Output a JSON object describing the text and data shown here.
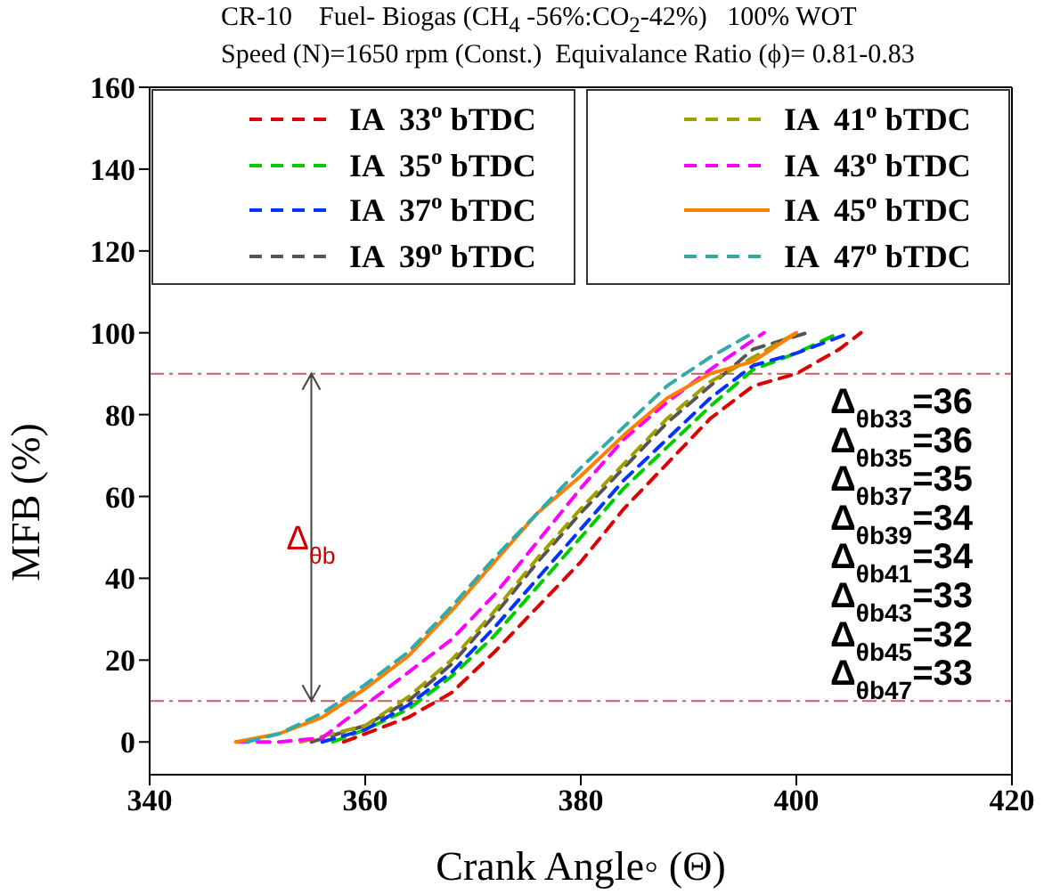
{
  "chart_data": {
    "type": "line",
    "title": "CR-10    Fuel- Biogas (CH$_{4}$ -56%:CO$_{2}$-42%)   100% WOT",
    "subtitle": "Speed (N)=1650 rpm (Const.)  Equivalance Ratio (ϕ)= 0.81-0.83",
    "xlabel": "Crank Angle◦ (Θ)",
    "ylabel": "MFB (%)",
    "series": [
      {
        "name": "IA  33$^{o}$ bTDC",
        "color": "#dd0000",
        "line_style": "dashed",
        "x": [
          358,
          360,
          364,
          368,
          372,
          376,
          380,
          384,
          388,
          392,
          396,
          400,
          404,
          406
        ],
        "values": [
          0,
          2,
          6,
          12,
          22,
          33,
          44,
          57,
          68,
          79,
          87,
          90,
          96,
          100
        ]
      },
      {
        "name": "IA  35$^{o}$ bTDC",
        "color": "#00cc00",
        "line_style": "dashed",
        "x": [
          357,
          360,
          364,
          368,
          372,
          376,
          380,
          384,
          388,
          392,
          396,
          400,
          404
        ],
        "values": [
          0,
          3,
          8,
          16,
          26,
          38,
          50,
          62,
          72,
          82,
          91,
          95,
          100
        ]
      },
      {
        "name": "IA  37$^{o}$ bTDC",
        "color": "#0033ff",
        "line_style": "dashed",
        "x": [
          356,
          360,
          364,
          368,
          372,
          376,
          380,
          384,
          388,
          392,
          396,
          400,
          405
        ],
        "values": [
          0,
          3,
          9,
          17,
          28,
          40,
          52,
          64,
          74,
          84,
          92,
          95,
          100
        ]
      },
      {
        "name": "IA  39$^{o}$ bTDC",
        "color": "#555555",
        "line_style": "dashed",
        "x": [
          355,
          360,
          364,
          368,
          372,
          376,
          380,
          384,
          388,
          392,
          396,
          401
        ],
        "values": [
          0,
          4,
          10,
          19,
          31,
          44,
          56,
          67,
          78,
          87,
          96,
          100
        ]
      },
      {
        "name": "IA  41$^{o}$ bTDC",
        "color": "#a0a000",
        "line_style": "dashed",
        "x": [
          354,
          360,
          364,
          368,
          372,
          376,
          380,
          384,
          388,
          392,
          396,
          400
        ],
        "values": [
          0,
          4,
          11,
          20,
          32,
          45,
          57,
          68,
          79,
          88,
          94,
          100
        ]
      },
      {
        "name": "IA  43$^{o}$ bTDC",
        "color": "#ff00ff",
        "line_style": "dashed",
        "x": [
          348,
          352,
          356,
          360,
          364,
          368,
          372,
          376,
          380,
          384,
          388,
          392,
          397
        ],
        "values": [
          0,
          0,
          1,
          9,
          17,
          25,
          36,
          49,
          62,
          74,
          83,
          91,
          100
        ]
      },
      {
        "name": "IA  45$^{o}$ bTDC",
        "color": "#ff7f00",
        "line_style": "solid",
        "x": [
          348,
          352,
          356,
          360,
          364,
          368,
          372,
          376,
          380,
          384,
          388,
          392,
          396,
          400
        ],
        "values": [
          0,
          2,
          6,
          13,
          21,
          32,
          44,
          56,
          65,
          75,
          84,
          90,
          93,
          100
        ]
      },
      {
        "name": "IA  47$^{o}$ bTDC",
        "color": "#33aaaa",
        "line_style": "dashed",
        "x": [
          349,
          352,
          356,
          360,
          364,
          368,
          372,
          376,
          380,
          384,
          388,
          392,
          396
        ],
        "values": [
          0,
          2,
          7,
          14,
          22,
          33,
          45,
          56,
          67,
          77,
          87,
          94,
          100
        ]
      }
    ],
    "xlim": [
      340,
      420
    ],
    "xticks": [
      340,
      360,
      380,
      400,
      420
    ],
    "ylim": [
      -8,
      160
    ],
    "yticks": [
      0,
      20,
      40,
      60,
      80,
      100,
      120,
      140,
      160
    ],
    "legend": "top",
    "marker": "none",
    "ref_lines": [
      {
        "axis": "y",
        "value": 10,
        "color": "#cd5c5c",
        "line_style": "dashdot"
      },
      {
        "axis": "y",
        "value": 90,
        "color": "#cd5c5c",
        "line_style": "dashdot"
      }
    ],
    "annotations": [
      "Δ$_{θb}$",
      "Δ$_{θb33}$=36",
      "Δ$_{θb35}$=36",
      "Δ$_{θb37}$=35",
      "Δ$_{θb39}$=34",
      "Δ$_{θb41}$=34",
      "Δ$_{θb43}$=33",
      "Δ$_{θb45}$=32",
      "Δ$_{θb47}$=33"
    ]
  }
}
